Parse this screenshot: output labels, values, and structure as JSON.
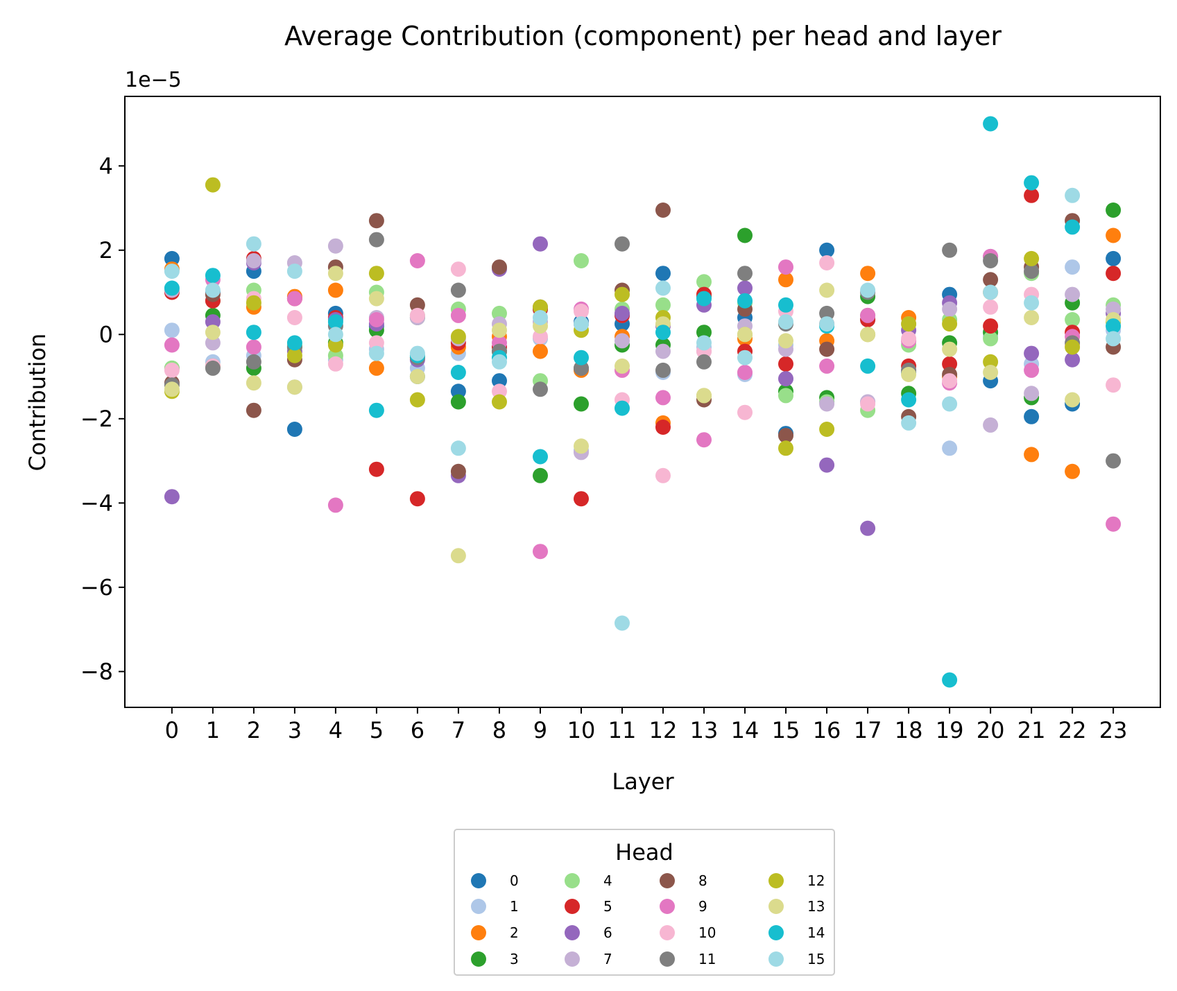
{
  "chart_data": {
    "type": "scatter",
    "title": "Average Contribution (component) per head and layer",
    "xlabel": "Layer",
    "ylabel": "Contribution",
    "y_offset_label": "1e−5",
    "y_multiplier": 1e-05,
    "xlim": [
      -1.15,
      24.15
    ],
    "ylim": [
      -8.85,
      5.65
    ],
    "x_ticks": [
      0,
      1,
      2,
      3,
      4,
      5,
      6,
      7,
      8,
      9,
      10,
      11,
      12,
      13,
      14,
      15,
      16,
      17,
      18,
      19,
      20,
      21,
      22,
      23
    ],
    "x_tick_labels": [
      "0",
      "1",
      "2",
      "3",
      "4",
      "5",
      "6",
      "7",
      "8",
      "9",
      "10",
      "11",
      "12",
      "13",
      "14",
      "15",
      "16",
      "17",
      "18",
      "19",
      "20",
      "21",
      "22",
      "23"
    ],
    "y_ticks": [
      -8,
      -6,
      -4,
      -2,
      0,
      2,
      4
    ],
    "y_tick_labels": [
      "−8",
      "−6",
      "−4",
      "−2",
      "0",
      "2",
      "4"
    ],
    "grid": false,
    "legend": {
      "title": "Head",
      "placement": "bottom-center",
      "columns": 4
    },
    "series": [
      {
        "name": "0",
        "color": "#1f77b4",
        "values": [
          1.8,
          1.0,
          1.5,
          -2.25,
          0.5,
          0.2,
          -1.0,
          -1.35,
          -1.1,
          0.6,
          0.3,
          0.25,
          1.45,
          0.9,
          0.4,
          -2.35,
          2.0,
          0.35,
          -0.9,
          0.95,
          -1.1,
          -1.95,
          -1.65,
          1.8
        ]
      },
      {
        "name": "1",
        "color": "#aec7e8",
        "values": [
          0.1,
          -0.65,
          -0.5,
          -1.25,
          -0.6,
          -0.35,
          -0.8,
          -0.45,
          -0.3,
          -0.1,
          -2.75,
          0.45,
          -0.9,
          -0.3,
          -0.95,
          -0.25,
          -1.6,
          -1.6,
          -0.85,
          -2.7,
          -0.05,
          -0.7,
          1.6,
          0.1
        ]
      },
      {
        "name": "2",
        "color": "#ff7f0e",
        "values": [
          1.55,
          -0.75,
          0.65,
          0.9,
          1.05,
          -0.8,
          -0.55,
          -0.3,
          -0.05,
          -0.4,
          -0.85,
          -0.05,
          -2.1,
          0.95,
          -0.1,
          1.3,
          -0.15,
          1.45,
          0.4,
          -1.0,
          1.0,
          -2.85,
          -3.25,
          2.35
        ]
      },
      {
        "name": "3",
        "color": "#2ca02c",
        "values": [
          -0.8,
          0.45,
          -0.8,
          -0.3,
          -0.2,
          0.1,
          0.4,
          -1.6,
          -0.4,
          -3.35,
          -1.65,
          -0.25,
          -0.25,
          0.05,
          2.35,
          -1.35,
          -1.5,
          0.9,
          -1.4,
          -0.2,
          0.05,
          -1.5,
          0.75,
          2.95
        ]
      },
      {
        "name": "4",
        "color": "#98df8a",
        "values": [
          -0.8,
          0.8,
          1.05,
          -0.25,
          -0.5,
          1.0,
          0.45,
          0.6,
          0.5,
          -1.1,
          1.75,
          0.6,
          0.7,
          1.25,
          0.75,
          -1.45,
          -1.6,
          -1.8,
          -0.25,
          0.35,
          -0.1,
          1.45,
          0.35,
          0.7
        ]
      },
      {
        "name": "5",
        "color": "#d62728",
        "values": [
          1.0,
          0.8,
          1.8,
          0.85,
          0.4,
          -3.2,
          -3.9,
          -0.2,
          -0.3,
          0.6,
          -3.9,
          0.45,
          -2.2,
          0.95,
          -0.4,
          -0.7,
          0.25,
          0.35,
          -0.75,
          -0.7,
          0.2,
          3.3,
          0.05,
          1.45
        ]
      },
      {
        "name": "6",
        "color": "#9467bd",
        "values": [
          -3.85,
          0.3,
          1.7,
          -0.4,
          0.35,
          0.25,
          -0.6,
          -3.35,
          1.55,
          2.15,
          0.25,
          0.5,
          0.2,
          0.7,
          1.1,
          -1.05,
          -3.1,
          -4.6,
          0.1,
          0.75,
          1.85,
          -0.45,
          -0.6,
          0.5
        ]
      },
      {
        "name": "7",
        "color": "#c5b0d5",
        "values": [
          1.05,
          -0.2,
          1.75,
          1.7,
          2.1,
          0.4,
          0.4,
          -0.1,
          0.25,
          0.3,
          -2.8,
          -0.15,
          -0.4,
          -0.4,
          0.2,
          -0.35,
          -1.65,
          -1.6,
          0.25,
          0.6,
          -2.15,
          -1.4,
          0.95,
          0.6
        ]
      },
      {
        "name": "8",
        "color": "#8c564b",
        "values": [
          -1.15,
          0.95,
          -1.8,
          -0.6,
          1.6,
          2.7,
          0.7,
          -3.25,
          1.6,
          0.65,
          -0.8,
          1.05,
          2.95,
          -1.55,
          0.6,
          -2.4,
          -0.35,
          0.45,
          -1.95,
          -0.95,
          1.3,
          1.6,
          2.7,
          -0.3
        ]
      },
      {
        "name": "9",
        "color": "#e377c2",
        "values": [
          -0.25,
          1.3,
          -0.3,
          0.85,
          -4.05,
          0.35,
          1.75,
          0.45,
          -0.2,
          -5.15,
          0.6,
          -0.85,
          -1.5,
          -2.5,
          -0.9,
          1.6,
          -0.75,
          0.45,
          -0.15,
          -1.15,
          1.85,
          -0.85,
          -0.05,
          -4.5
        ]
      },
      {
        "name": "10",
        "color": "#f7b6d2",
        "values": [
          -0.85,
          -0.75,
          0.85,
          0.4,
          -0.7,
          -0.2,
          0.45,
          1.55,
          -1.35,
          -0.05,
          0.55,
          -1.55,
          -3.35,
          -0.4,
          -1.85,
          0.55,
          1.7,
          -1.65,
          -0.1,
          -1.1,
          0.65,
          0.95,
          -0.25,
          -1.2
        ]
      },
      {
        "name": "11",
        "color": "#7f7f7f",
        "values": [
          -1.2,
          -0.8,
          -0.65,
          -0.3,
          0.2,
          2.25,
          -0.55,
          1.05,
          -0.4,
          -1.3,
          -0.8,
          2.15,
          -0.85,
          -0.65,
          1.45,
          0.25,
          0.5,
          1.0,
          -0.85,
          2.0,
          1.75,
          1.5,
          -0.2,
          -3.0
        ]
      },
      {
        "name": "12",
        "color": "#bcbd22",
        "values": [
          -1.35,
          3.55,
          0.75,
          -0.5,
          -0.25,
          1.45,
          -1.55,
          -0.05,
          -1.6,
          0.65,
          0.1,
          0.95,
          0.4,
          -1.45,
          0.0,
          -2.7,
          -2.25,
          0.0,
          0.25,
          0.25,
          -0.65,
          1.8,
          -0.3,
          0.3
        ]
      },
      {
        "name": "13",
        "color": "#dbdb8d",
        "values": [
          -1.3,
          0.05,
          -1.15,
          -1.25,
          1.45,
          0.85,
          -1.0,
          -5.25,
          0.1,
          0.2,
          -2.65,
          -0.75,
          0.25,
          -1.45,
          0.0,
          -0.15,
          1.05,
          0.0,
          -0.95,
          -0.35,
          -0.9,
          0.4,
          -1.55,
          0.35
        ]
      },
      {
        "name": "14",
        "color": "#17becf",
        "values": [
          1.1,
          1.4,
          0.05,
          -0.2,
          0.3,
          -1.8,
          -0.5,
          -0.9,
          -0.55,
          -2.9,
          -0.55,
          -1.75,
          0.05,
          0.85,
          0.8,
          0.7,
          0.2,
          -0.75,
          -1.55,
          -8.2,
          5.0,
          3.6,
          2.55,
          0.2
        ]
      },
      {
        "name": "15",
        "color": "#9edae5",
        "values": [
          1.5,
          1.05,
          2.15,
          1.5,
          0.0,
          -0.45,
          -0.45,
          -2.7,
          -0.65,
          0.4,
          0.25,
          -6.85,
          1.1,
          -0.2,
          -0.55,
          0.3,
          0.25,
          1.05,
          -2.1,
          -1.65,
          1.0,
          0.75,
          3.3,
          -0.1
        ]
      }
    ]
  }
}
